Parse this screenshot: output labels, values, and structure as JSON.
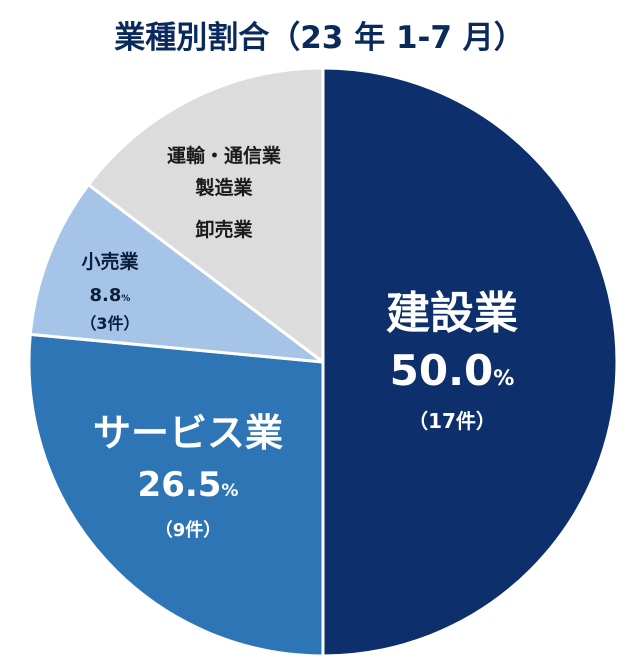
{
  "chart_data": {
    "type": "pie",
    "title": "業種別割合（23 年 1-7 月）",
    "slices": [
      {
        "name": "建設業",
        "percent": 50.0,
        "percent_label": "50.0",
        "count_label": "（17件）",
        "color": "#0d2f6b",
        "text_color": "#ffffff"
      },
      {
        "name": "サービス業",
        "percent": 26.5,
        "percent_label": "26.5",
        "count_label": "（9件）",
        "color": "#2e75b6",
        "text_color": "#ffffff"
      },
      {
        "name": "小売業",
        "percent": 8.8,
        "percent_label": "8.8",
        "count_label": "（3件）",
        "color": "#a5c4e8",
        "text_color": "#0b1f3a"
      },
      {
        "name": "運輸・通信業|製造業|卸売業",
        "percent": 14.7,
        "percent_label": "",
        "count_label": "",
        "color": "#dcdcdc",
        "text_color": "#1a1a1a"
      }
    ],
    "percent_unit": "%"
  }
}
